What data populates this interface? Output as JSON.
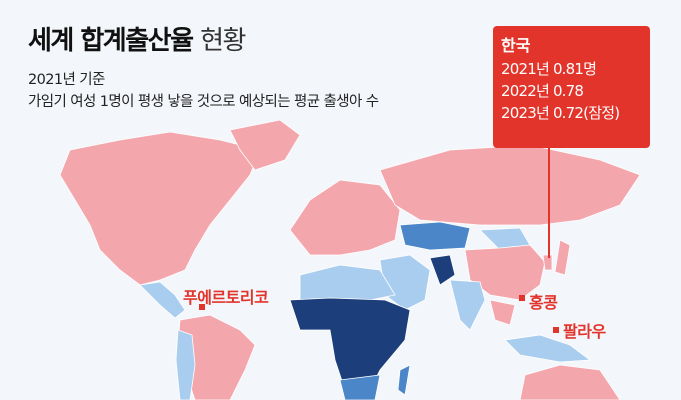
{
  "header": {
    "title_bold": "세계 합계출산율",
    "title_light": "현황",
    "subtitle_1": "2021년 기준",
    "subtitle_2": "가임기 여성 1명이 평생 낳을 것으로 예상되는 평균 출생아 수"
  },
  "callout": {
    "country": "한국",
    "lines": [
      "2021년 0.81명",
      "2022년 0.78",
      "2023년 0.72(잠정)"
    ]
  },
  "labels": {
    "puerto_rico": "푸에르토리코",
    "hong_kong": "홍콩",
    "palau": "팔라우"
  },
  "colors": {
    "background": "#f3f6fa",
    "low_fertility": "#f4a6ad",
    "medium_low": "#a9cdef",
    "medium_high": "#4a86c8",
    "high": "#1c3f7c",
    "accent": "#e3342b"
  }
}
